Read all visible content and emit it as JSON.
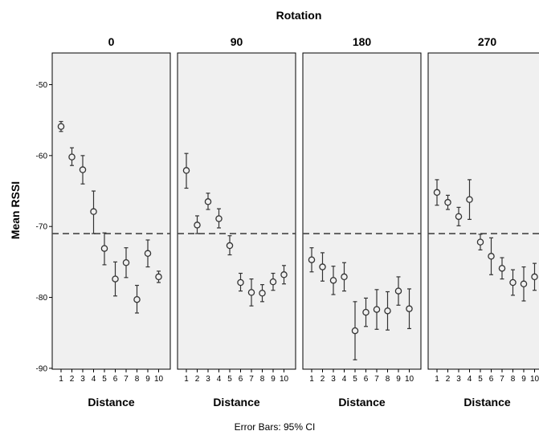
{
  "chart_data": {
    "type": "scatter",
    "facet_title": "Rotation",
    "xlabel": "Distance",
    "ylabel": "Mean RSSI",
    "footnote": "Error Bars: 95% CI",
    "x_ticks": [
      1,
      2,
      3,
      4,
      5,
      6,
      7,
      8,
      9,
      10
    ],
    "y_ticks": [
      -50,
      -60,
      -70,
      -80,
      -90
    ],
    "ylim": [
      -90,
      -46
    ],
    "reference_line_y": -71,
    "reference_line_style": "dashed",
    "marker": "open-circle",
    "colors": {
      "panel_bg": "#f0f0f0",
      "marks": "#333333"
    },
    "panels": [
      {
        "title": "0",
        "points": [
          {
            "x": 1,
            "mean": -55.9,
            "lo": -56.6,
            "hi": -55.2
          },
          {
            "x": 2,
            "mean": -60.2,
            "lo": -61.4,
            "hi": -58.9
          },
          {
            "x": 3,
            "mean": -62.0,
            "lo": -64.0,
            "hi": -60.0
          },
          {
            "x": 4,
            "mean": -67.9,
            "lo": -71.0,
            "hi": -65.0
          },
          {
            "x": 5,
            "mean": -73.1,
            "lo": -75.4,
            "hi": -70.9
          },
          {
            "x": 6,
            "mean": -77.4,
            "lo": -79.8,
            "hi": -75.0
          },
          {
            "x": 7,
            "mean": -75.1,
            "lo": -77.2,
            "hi": -73.0
          },
          {
            "x": 8,
            "mean": -80.3,
            "lo": -82.2,
            "hi": -78.3
          },
          {
            "x": 9,
            "mean": -73.8,
            "lo": -75.7,
            "hi": -71.9
          },
          {
            "x": 10,
            "mean": -77.1,
            "lo": -77.9,
            "hi": -76.3
          }
        ]
      },
      {
        "title": "90",
        "points": [
          {
            "x": 1,
            "mean": -62.1,
            "lo": -64.6,
            "hi": -59.7
          },
          {
            "x": 2,
            "mean": -69.8,
            "lo": -71.0,
            "hi": -68.5
          },
          {
            "x": 3,
            "mean": -66.5,
            "lo": -67.6,
            "hi": -65.3
          },
          {
            "x": 4,
            "mean": -68.9,
            "lo": -70.2,
            "hi": -67.5
          },
          {
            "x": 5,
            "mean": -72.7,
            "lo": -74.0,
            "hi": -71.3
          },
          {
            "x": 6,
            "mean": -77.9,
            "lo": -79.1,
            "hi": -76.6
          },
          {
            "x": 7,
            "mean": -79.3,
            "lo": -81.2,
            "hi": -77.4
          },
          {
            "x": 8,
            "mean": -79.4,
            "lo": -80.6,
            "hi": -78.2
          },
          {
            "x": 9,
            "mean": -77.8,
            "lo": -79.0,
            "hi": -76.6
          },
          {
            "x": 10,
            "mean": -76.8,
            "lo": -78.1,
            "hi": -75.5
          }
        ]
      },
      {
        "title": "180",
        "points": [
          {
            "x": 1,
            "mean": -74.7,
            "lo": -76.4,
            "hi": -73.0
          },
          {
            "x": 2,
            "mean": -75.7,
            "lo": -77.7,
            "hi": -73.7
          },
          {
            "x": 3,
            "mean": -77.6,
            "lo": -79.6,
            "hi": -75.6
          },
          {
            "x": 4,
            "mean": -77.1,
            "lo": -79.1,
            "hi": -75.1
          },
          {
            "x": 5,
            "mean": -84.7,
            "lo": -88.8,
            "hi": -80.6
          },
          {
            "x": 6,
            "mean": -82.1,
            "lo": -84.1,
            "hi": -80.1
          },
          {
            "x": 7,
            "mean": -81.7,
            "lo": -84.5,
            "hi": -78.9
          },
          {
            "x": 8,
            "mean": -81.9,
            "lo": -84.6,
            "hi": -79.2
          },
          {
            "x": 9,
            "mean": -79.1,
            "lo": -81.1,
            "hi": -77.1
          },
          {
            "x": 10,
            "mean": -81.6,
            "lo": -84.4,
            "hi": -78.8
          }
        ]
      },
      {
        "title": "270",
        "points": [
          {
            "x": 1,
            "mean": -65.2,
            "lo": -67.0,
            "hi": -63.4
          },
          {
            "x": 2,
            "mean": -66.6,
            "lo": -67.6,
            "hi": -65.6
          },
          {
            "x": 3,
            "mean": -68.6,
            "lo": -69.9,
            "hi": -67.3
          },
          {
            "x": 4,
            "mean": -66.2,
            "lo": -69.0,
            "hi": -63.4
          },
          {
            "x": 5,
            "mean": -72.2,
            "lo": -73.3,
            "hi": -71.1
          },
          {
            "x": 6,
            "mean": -74.2,
            "lo": -76.8,
            "hi": -71.6
          },
          {
            "x": 7,
            "mean": -75.9,
            "lo": -77.4,
            "hi": -74.4
          },
          {
            "x": 8,
            "mean": -77.9,
            "lo": -79.7,
            "hi": -76.1
          },
          {
            "x": 9,
            "mean": -78.1,
            "lo": -80.5,
            "hi": -75.7
          },
          {
            "x": 10,
            "mean": -77.1,
            "lo": -79.0,
            "hi": -75.2
          }
        ]
      }
    ]
  }
}
